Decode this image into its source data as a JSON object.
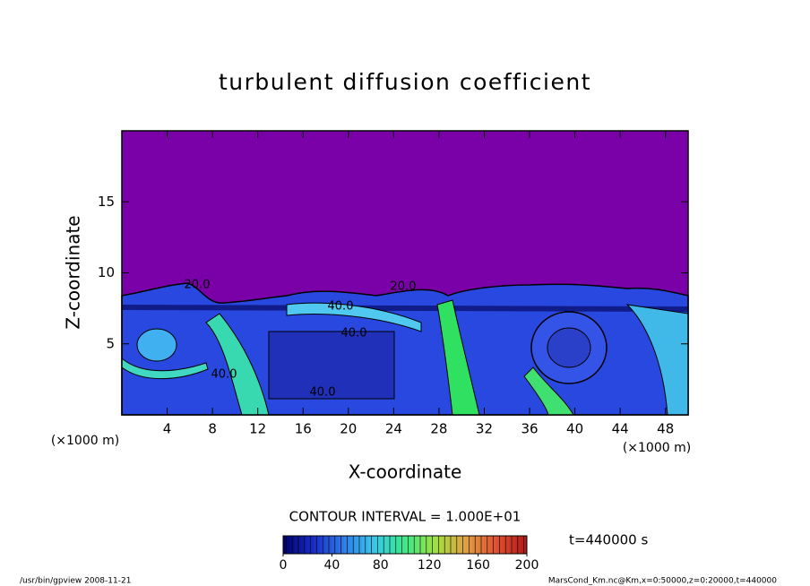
{
  "chart_data": {
    "type": "contour",
    "title": "turbulent diffusion coefficient",
    "x_label": "X-coordinate",
    "y_label": "Z-coordinate",
    "x_unit": "(×1000 m)",
    "xlim": [
      0,
      50
    ],
    "xticks": [
      4,
      8,
      12,
      16,
      20,
      24,
      28,
      32,
      36,
      40,
      44,
      48
    ],
    "ylim": [
      0,
      20
    ],
    "yticks": [
      5,
      10,
      15
    ],
    "contour_interval_text": "CONTOUR INTERVAL = 1.000E+01",
    "contour_labels": [
      "20.0",
      "20.0",
      "40.0",
      "40.0",
      "40.0",
      "40.0"
    ],
    "colorbar": {
      "clim": [
        0,
        200
      ],
      "cticks": [
        0,
        40,
        80,
        120,
        160,
        200
      ],
      "colormap": [
        "#00006a",
        "#1a2cc8",
        "#2f7ce8",
        "#38c8e8",
        "#3ce888",
        "#a0e040",
        "#e0a040",
        "#e05030",
        "#b01818"
      ]
    },
    "time_label": "t=440000 s",
    "footer_left": "/usr/bin/gpview   2008-11-21",
    "footer_right": "MarsCond_Km.nc@Km,x=0:50000,z=0:20000,t=440000"
  }
}
